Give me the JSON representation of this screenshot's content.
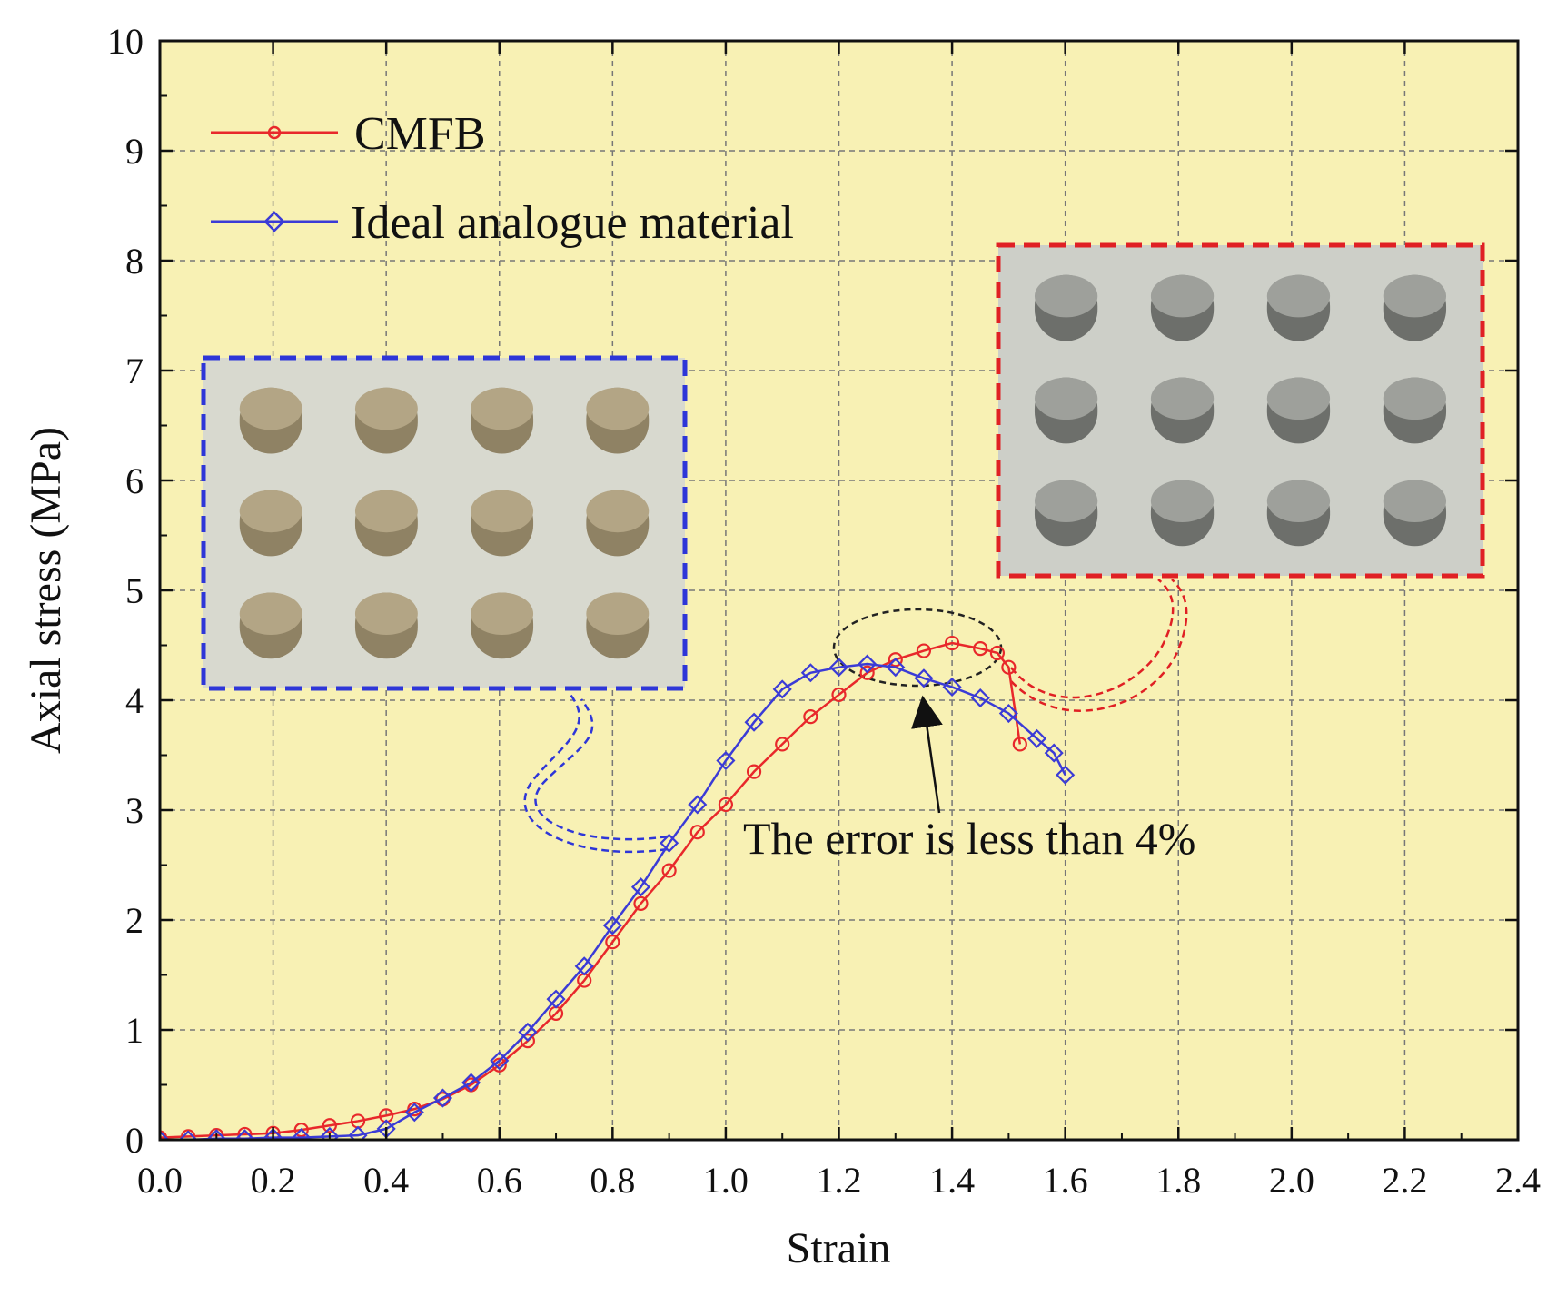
{
  "chart_data": {
    "type": "line",
    "title": "",
    "xlabel": "Strain",
    "ylabel": "Axial stress (MPa)",
    "xlim": [
      0.0,
      2.4
    ],
    "ylim": [
      0,
      10
    ],
    "x_ticks": [
      "0.0",
      "0.2",
      "0.4",
      "0.6",
      "0.8",
      "1.0",
      "1.2",
      "1.4",
      "1.6",
      "1.8",
      "2.0",
      "2.2",
      "2.4"
    ],
    "y_ticks": [
      "0",
      "1",
      "2",
      "3",
      "4",
      "5",
      "6",
      "7",
      "8",
      "9",
      "10"
    ],
    "grid": true,
    "legend_position": "top-left",
    "series": [
      {
        "name": "CMFB",
        "color": "#e8282b",
        "marker": "circle",
        "points": [
          [
            0.0,
            0.02
          ],
          [
            0.05,
            0.03
          ],
          [
            0.1,
            0.04
          ],
          [
            0.15,
            0.05
          ],
          [
            0.2,
            0.06
          ],
          [
            0.25,
            0.09
          ],
          [
            0.3,
            0.13
          ],
          [
            0.35,
            0.17
          ],
          [
            0.4,
            0.22
          ],
          [
            0.45,
            0.28
          ],
          [
            0.5,
            0.37
          ],
          [
            0.55,
            0.5
          ],
          [
            0.6,
            0.68
          ],
          [
            0.65,
            0.9
          ],
          [
            0.7,
            1.15
          ],
          [
            0.75,
            1.45
          ],
          [
            0.8,
            1.8
          ],
          [
            0.85,
            2.15
          ],
          [
            0.9,
            2.45
          ],
          [
            0.95,
            2.8
          ],
          [
            1.0,
            3.05
          ],
          [
            1.05,
            3.35
          ],
          [
            1.1,
            3.6
          ],
          [
            1.15,
            3.85
          ],
          [
            1.2,
            4.05
          ],
          [
            1.25,
            4.25
          ],
          [
            1.3,
            4.37
          ],
          [
            1.35,
            4.45
          ],
          [
            1.4,
            4.52
          ],
          [
            1.45,
            4.47
          ],
          [
            1.48,
            4.43
          ],
          [
            1.5,
            4.3
          ],
          [
            1.52,
            3.6
          ]
        ]
      },
      {
        "name": "Ideal analogue material",
        "color": "#3b3bd6",
        "marker": "diamond",
        "points": [
          [
            0.0,
            0.0
          ],
          [
            0.05,
            0.0
          ],
          [
            0.1,
            0.01
          ],
          [
            0.15,
            0.01
          ],
          [
            0.2,
            0.02
          ],
          [
            0.25,
            0.02
          ],
          [
            0.3,
            0.03
          ],
          [
            0.35,
            0.04
          ],
          [
            0.4,
            0.1
          ],
          [
            0.45,
            0.25
          ],
          [
            0.5,
            0.38
          ],
          [
            0.55,
            0.52
          ],
          [
            0.6,
            0.72
          ],
          [
            0.65,
            0.98
          ],
          [
            0.7,
            1.28
          ],
          [
            0.75,
            1.58
          ],
          [
            0.8,
            1.95
          ],
          [
            0.85,
            2.3
          ],
          [
            0.9,
            2.7
          ],
          [
            0.95,
            3.05
          ],
          [
            1.0,
            3.45
          ],
          [
            1.05,
            3.8
          ],
          [
            1.1,
            4.1
          ],
          [
            1.15,
            4.25
          ],
          [
            1.2,
            4.3
          ],
          [
            1.25,
            4.33
          ],
          [
            1.3,
            4.3
          ],
          [
            1.35,
            4.2
          ],
          [
            1.4,
            4.12
          ],
          [
            1.45,
            4.02
          ],
          [
            1.5,
            3.88
          ],
          [
            1.55,
            3.65
          ],
          [
            1.58,
            3.52
          ],
          [
            1.6,
            3.32
          ]
        ]
      }
    ],
    "annotation": "The error is less than 4%"
  },
  "colors": {
    "plot_background": "#f8f1b4",
    "grid": "#777777",
    "cmfb": "#e8282b",
    "ideal": "#3b3bd6",
    "photo_background_blue": "#d8d9cf",
    "photo_background_red": "#cdcfc8",
    "specimen_tan": "#a99a7a",
    "specimen_grey": "#7c7e7a"
  },
  "insets": {
    "blue": {
      "description_icon": "tan-specimen-photo"
    },
    "red": {
      "description_icon": "grey-specimen-photo"
    }
  }
}
